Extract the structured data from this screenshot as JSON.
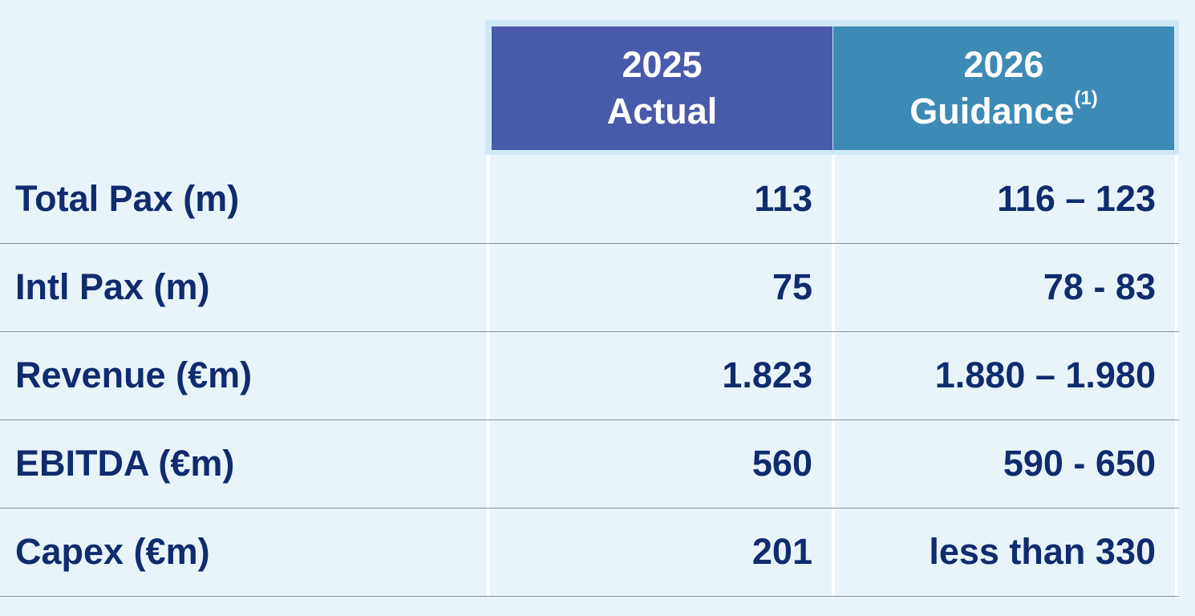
{
  "header": {
    "actual": {
      "year": "2025",
      "label": "Actual"
    },
    "guidance": {
      "year": "2026",
      "label": "Guidance",
      "footnote": "(1)"
    }
  },
  "rows": [
    {
      "label": "Total Pax (m)",
      "actual": "113",
      "guidance": "116 – 123"
    },
    {
      "label": "Intl Pax (m)",
      "actual": "75",
      "guidance": "78 - 83"
    },
    {
      "label": "Revenue (€m)",
      "actual": "1.823",
      "guidance": "1.880 – 1.980"
    },
    {
      "label": "EBITDA (€m)",
      "actual": "560",
      "guidance": "590 - 650"
    },
    {
      "label": "Capex (€m)",
      "actual": "201",
      "guidance": "less than 330"
    }
  ],
  "colors": {
    "background": "#e8f4fa",
    "header_actual": "#4a5aab",
    "header_guidance": "#3d8ab6",
    "text": "#102b6e"
  }
}
